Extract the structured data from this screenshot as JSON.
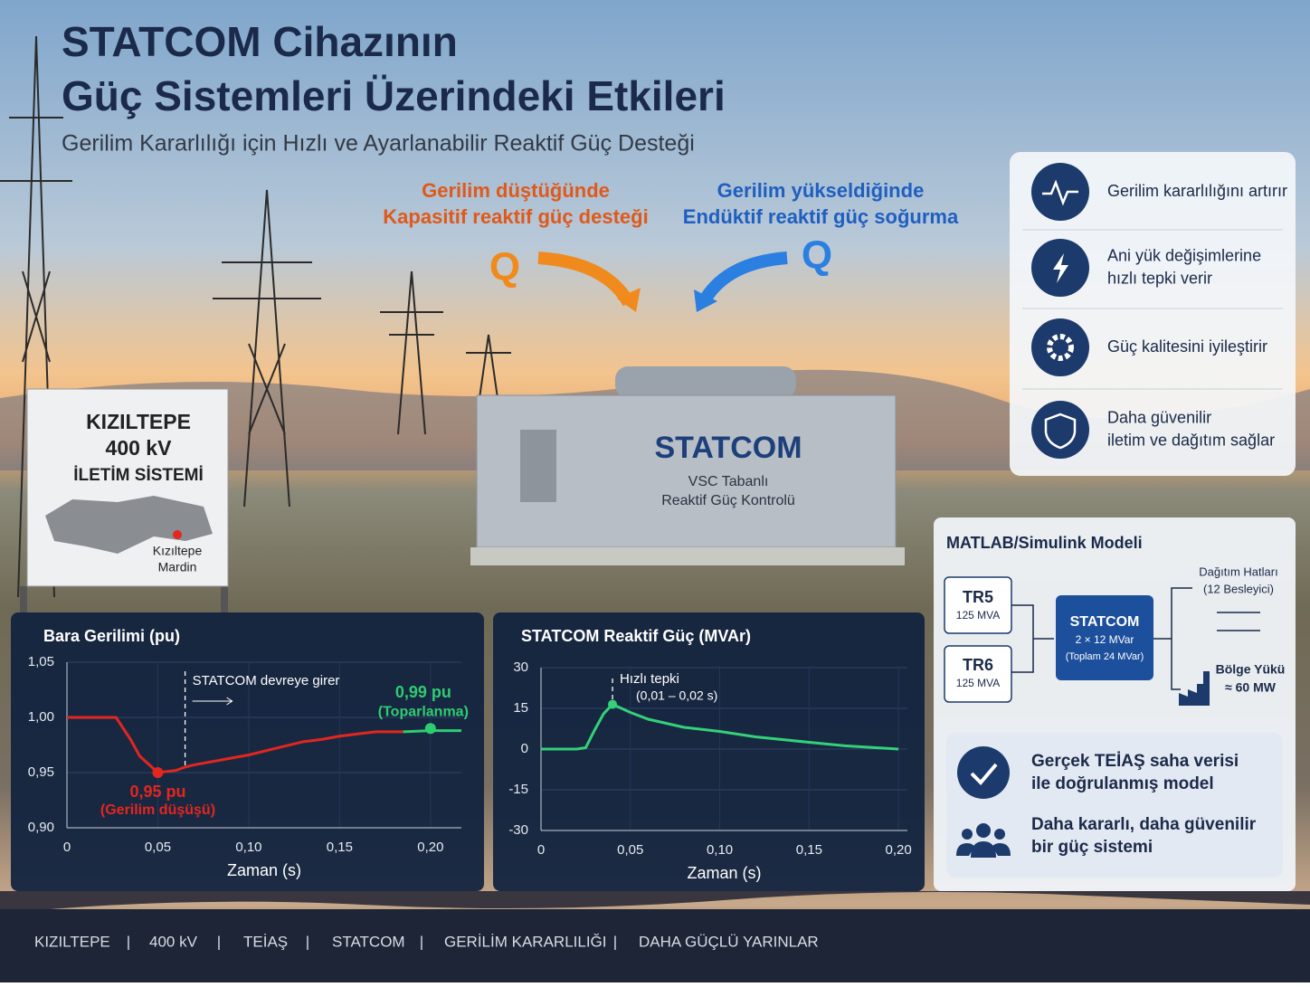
{
  "header": {
    "title_line1": "STATCOM Cihazının",
    "title_line2": "Güç Sistemleri Üzerindeki Etkileri",
    "subtitle": "Gerilim Kararlılığı için Hızlı ve Ayarlanabilir Reaktif Güç Desteği"
  },
  "callouts": [
    {
      "line1": "Gerilim düştüğünde",
      "line2": "Kapasitif reaktif güç desteği",
      "symbol": "Q"
    },
    {
      "line1": "Gerilim yükseldiğinde",
      "line2": "Endüktif reaktif güç soğurma",
      "symbol": "Q"
    }
  ],
  "sign": {
    "lines": [
      "KIZILTEPE",
      "400 kV",
      "İLETİM SİSTEMİ"
    ],
    "place": "Kızıltepe",
    "province": "Mardin"
  },
  "device": {
    "name": "STATCOM",
    "line1": "VSC Tabanlı",
    "line2": "Reaktif Güç Kontrolü"
  },
  "benefits": [
    [
      "Gerilim kararlılığını artırır"
    ],
    [
      "Ani yük değişimlerine",
      "hızlı tepki verir"
    ],
    [
      "Güç kalitesini iyileştirir"
    ],
    [
      "Daha güvenilir",
      "iletim ve dağıtım sağlar"
    ]
  ],
  "model": {
    "title": "MATLAB/Simulink Modeli",
    "tr5": {
      "name": "TR5",
      "rating": "125 MVA"
    },
    "tr6": {
      "name": "TR6",
      "rating": "125 MVA"
    },
    "statcom": {
      "name": "STATCOM",
      "line1": "2 × 12 MVar",
      "line2": "(Toplam 24 MVar)"
    },
    "distribution": [
      "Dağıtım Hatları",
      "(12 Besleyici)"
    ],
    "load": [
      "Bölge Yükü",
      "≈ 60 MW"
    ]
  },
  "conclusions": [
    [
      "Gerçek TEİAŞ saha verisi",
      "ile doğrulanmış model"
    ],
    [
      "Daha kararlı, daha güvenilir",
      "bir güç sistemi"
    ]
  ],
  "footer": [
    "KIZILTEPE",
    "400 kV",
    "TEİAŞ",
    "STATCOM",
    "GERİLİM KARARLILIĞI",
    "DAHA GÜÇLÜ YARINLAR"
  ],
  "chart_data": [
    {
      "type": "line",
      "title": "Bara Gerilimi (pu)",
      "x_label": "Zaman (s)",
      "grid": true,
      "xlim": [
        0,
        0.217
      ],
      "ylim": [
        0.9,
        1.05
      ],
      "xticks": [
        0,
        {
          "value": 0.05,
          "label": "0,05"
        },
        {
          "value": 0.1,
          "label": "0,10"
        },
        {
          "value": 0.15,
          "label": "0,15"
        },
        {
          "value": 0.2,
          "label": "0,20"
        }
      ],
      "yticks": [
        {
          "value": 0.9,
          "label": "0,90"
        },
        {
          "value": 0.95,
          "label": "0,95"
        },
        {
          "value": 1.0,
          "label": "1,00"
        },
        {
          "value": 1.05,
          "label": "1,05"
        }
      ],
      "series": [
        {
          "color": "#e3261f",
          "x": [
            0,
            0.027,
            0.035,
            0.04,
            0.05,
            0.06,
            0.065,
            0.07,
            0.08,
            0.09,
            0.1,
            0.11,
            0.12,
            0.13,
            0.14,
            0.15,
            0.16,
            0.17,
            0.185
          ],
          "values": [
            1.0,
            1.0,
            0.98,
            0.965,
            0.95,
            0.952,
            0.955,
            0.957,
            0.96,
            0.963,
            0.966,
            0.97,
            0.974,
            0.978,
            0.98,
            0.983,
            0.985,
            0.987,
            0.987
          ]
        },
        {
          "color": "#2ecc71",
          "x": [
            0.185,
            0.2,
            0.217
          ],
          "values": [
            0.987,
            0.988,
            0.988
          ]
        }
      ],
      "events": [
        {
          "x": 0.065,
          "label": "STATCOM devreye girer"
        }
      ],
      "annotations": [
        {
          "x": 0.05,
          "y": 0.95,
          "label": "0,95 pu",
          "note": "(Gerilim düşüşü)",
          "color": "#e3261f"
        },
        {
          "x": 0.2,
          "y": 0.99,
          "label": "0,99 pu",
          "note": "(Toparlanma)",
          "color": "#2ecc71"
        }
      ]
    },
    {
      "type": "line",
      "title": "STATCOM Reaktif Güç (MVAr)",
      "x_label": "Zaman (s)",
      "grid": true,
      "xlim": [
        0,
        0.205
      ],
      "ylim": [
        -30,
        30
      ],
      "xticks": [
        0,
        {
          "value": 0.05,
          "label": "0,05"
        },
        {
          "value": 0.1,
          "label": "0,10"
        },
        {
          "value": 0.15,
          "label": "0,15"
        },
        {
          "value": 0.2,
          "label": "0,20"
        }
      ],
      "yticks": [
        -30,
        -15,
        0,
        15,
        30
      ],
      "series": [
        {
          "color": "#33d17a",
          "x": [
            0,
            0.02,
            0.025,
            0.03,
            0.035,
            0.04,
            0.045,
            0.05,
            0.06,
            0.07,
            0.08,
            0.1,
            0.12,
            0.15,
            0.17,
            0.2
          ],
          "values": [
            0,
            0,
            0.5,
            7,
            13,
            16.5,
            15,
            13.5,
            11,
            9.5,
            8,
            6.5,
            4.5,
            2.5,
            1.2,
            0
          ]
        }
      ],
      "events": [
        {
          "x": 0.04,
          "label": "Hızlı tepki",
          "note": "(0,01 – 0,02 s)"
        }
      ],
      "annotations": []
    }
  ]
}
